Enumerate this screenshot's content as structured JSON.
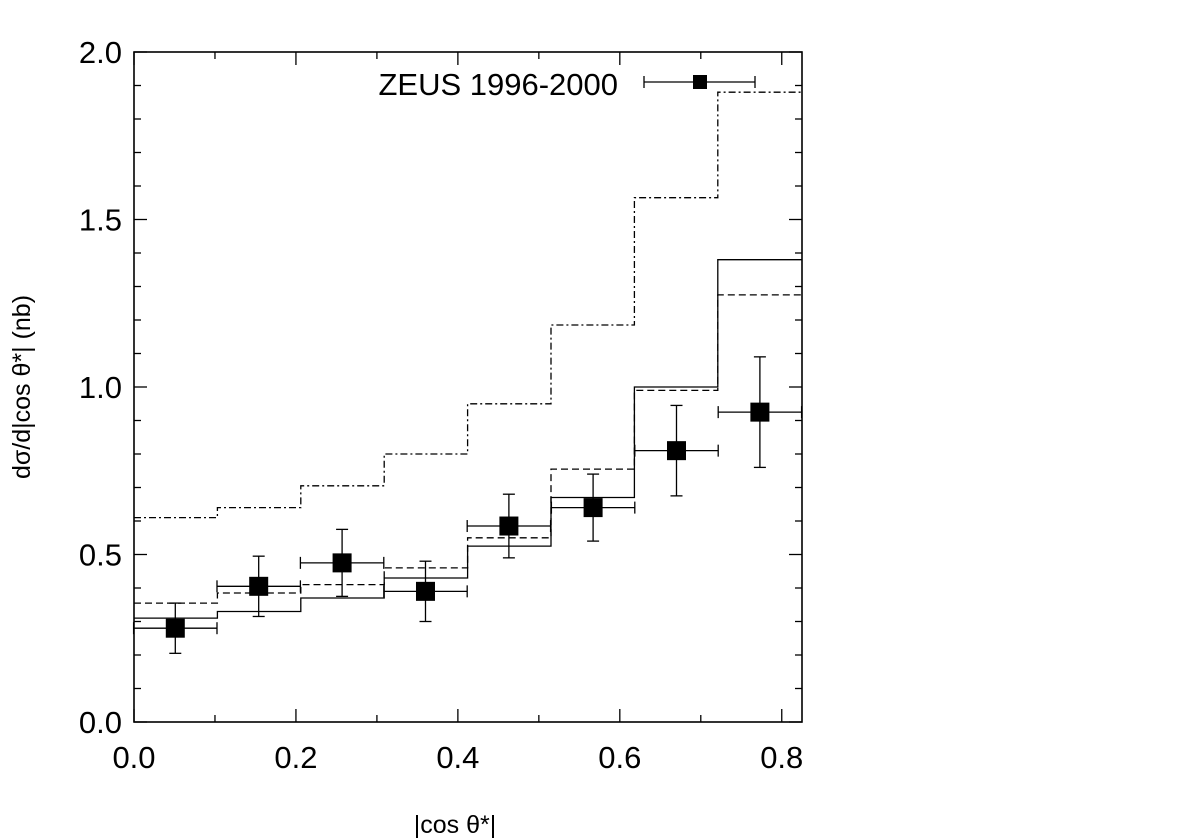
{
  "chart_data": {
    "type": "scatter",
    "title": "",
    "xlabel": "|cos θ*|",
    "ylabel": "dσ/d|cos θ*| (nb)",
    "xlim": [
      0.0,
      0.825
    ],
    "ylim": [
      0.0,
      2.0
    ],
    "x_ticks": [
      "0.0",
      "0.2",
      "0.4",
      "0.6",
      "0.8"
    ],
    "y_ticks": [
      "0.0",
      "0.5",
      "1.0",
      "1.5",
      "2.0"
    ],
    "grid": false,
    "legend_position": "top-right",
    "bin_edges": [
      0.0,
      0.103,
      0.206,
      0.309,
      0.412,
      0.515,
      0.618,
      0.721,
      0.825
    ],
    "data": {
      "name": "ZEUS 1996-2000",
      "x": [
        0.051,
        0.154,
        0.257,
        0.36,
        0.463,
        0.567,
        0.67,
        0.773
      ],
      "y": [
        0.28,
        0.405,
        0.475,
        0.39,
        0.585,
        0.64,
        0.81,
        0.925
      ],
      "y_err": [
        0.075,
        0.09,
        0.1,
        0.09,
        0.095,
        0.1,
        0.135,
        0.165
      ],
      "x_err": 0.0515
    },
    "series": [
      {
        "style": "solid",
        "values": [
          0.31,
          0.33,
          0.37,
          0.43,
          0.525,
          0.67,
          1.0,
          1.38
        ]
      },
      {
        "style": "dashed",
        "values": [
          0.355,
          0.385,
          0.41,
          0.46,
          0.55,
          0.755,
          0.99,
          1.275
        ]
      },
      {
        "style": "dash-dot",
        "values": [
          0.61,
          0.64,
          0.705,
          0.8,
          0.95,
          1.185,
          1.565,
          1.88
        ]
      }
    ]
  }
}
